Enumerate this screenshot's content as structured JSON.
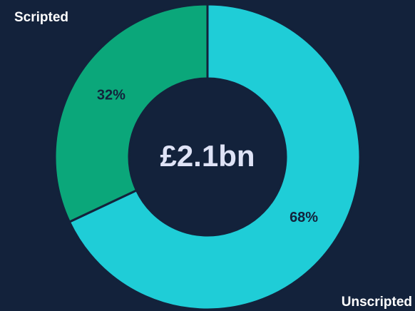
{
  "chart_data": {
    "type": "pie",
    "center_label": "£2.1bn",
    "categories": [
      "Unscripted",
      "Scripted"
    ],
    "values": [
      68,
      32
    ],
    "value_labels": [
      "68%",
      "32%"
    ],
    "colors": [
      "#1fcdd7",
      "#0ba77a"
    ],
    "donut": true
  }
}
